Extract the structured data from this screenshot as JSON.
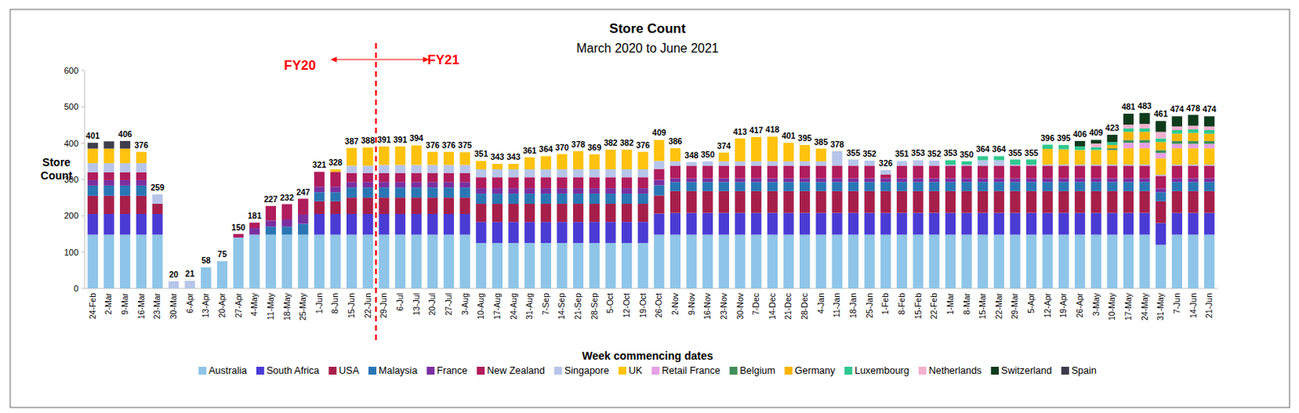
{
  "chart_data": {
    "type": "bar",
    "stacked": true,
    "grid": false,
    "legend": "bottom",
    "title": "Store Count",
    "subtitle": "March 2020 to June 2021",
    "y_label": "Store Count",
    "x_label": "Week commencing dates",
    "ylim": [
      0,
      600
    ],
    "yticks": [
      0,
      100,
      200,
      300,
      400,
      500,
      600
    ],
    "annotations": [
      {
        "text": "FY20",
        "x": "22-Jun",
        "color": "#ff0000"
      },
      {
        "text": "FY21",
        "x": "29-Jun",
        "color": "#ff0000"
      }
    ],
    "categories": [
      "24-Feb",
      "2-Mar",
      "9-Mar",
      "16-Mar",
      "23-Mar",
      "30-Mar",
      "6-Apr",
      "13-Apr",
      "20-Apr",
      "27-Apr",
      "4-May",
      "11-May",
      "18-May",
      "25-May",
      "1-Jun",
      "8-Jun",
      "15-Jun",
      "22-Jun",
      "29-Jun",
      "6-Jul",
      "13-Jul",
      "20-Jul",
      "27-Jul",
      "3-Aug",
      "10-Aug",
      "17-Aug",
      "24-Aug",
      "31-Aug",
      "7-Sep",
      "14-Sep",
      "21-Sep",
      "28-Sep",
      "5-Oct",
      "12-Oct",
      "19-Oct",
      "26-Oct",
      "2-Nov",
      "9-Nov",
      "16-Nov",
      "23-Nov",
      "30-Nov",
      "7-Dec",
      "14-Dec",
      "21-Dec",
      "28-Dec",
      "4-Jan",
      "11-Jan",
      "18-Jan",
      "25-Jan",
      "1-Feb",
      "8-Feb",
      "15-Feb",
      "22-Feb",
      "1-Mar",
      "8-Mar",
      "15-Mar",
      "22-Mar",
      "29-Mar",
      "5-Apr",
      "12-Apr",
      "19-Apr",
      "26-Apr",
      "3-May",
      "10-May",
      "17-May",
      "24-May",
      "31-May",
      "7-Jun",
      "14-Jun",
      "21-Jun"
    ],
    "totals": [
      401,
      null,
      406,
      376,
      259,
      20,
      21,
      58,
      75,
      150,
      181,
      227,
      232,
      247,
      321,
      328,
      387,
      388,
      391,
      391,
      394,
      376,
      376,
      375,
      351,
      343,
      343,
      361,
      364,
      370,
      378,
      369,
      382,
      382,
      376,
      409,
      386,
      348,
      350,
      374,
      413,
      417,
      418,
      401,
      395,
      385,
      378,
      355,
      352,
      326,
      351,
      353,
      352,
      353,
      350,
      364,
      364,
      355,
      355,
      396,
      395,
      406,
      409,
      423,
      481,
      483,
      461,
      474,
      478,
      474
    ],
    "series": [
      {
        "name": "Australia",
        "color": "#8ec5e8",
        "values": [
          148,
          148,
          148,
          148,
          148,
          null,
          null,
          58,
          75,
          140,
          148,
          148,
          148,
          148,
          148,
          148,
          148,
          148,
          148,
          148,
          148,
          148,
          148,
          148,
          125,
          125,
          125,
          125,
          125,
          125,
          125,
          125,
          125,
          125,
          125,
          148,
          148,
          148,
          148,
          148,
          148,
          148,
          148,
          148,
          148,
          148,
          148,
          148,
          148,
          148,
          148,
          148,
          148,
          148,
          148,
          148,
          148,
          148,
          148,
          148,
          148,
          148,
          148,
          148,
          148,
          148,
          120,
          148,
          148,
          148
        ]
      },
      {
        "name": "South Africa",
        "color": "#4a3bd4",
        "values": [
          57,
          57,
          57,
          57,
          57,
          null,
          null,
          null,
          null,
          null,
          null,
          null,
          null,
          null,
          57,
          57,
          57,
          57,
          57,
          57,
          57,
          57,
          57,
          57,
          58,
          58,
          58,
          58,
          58,
          58,
          58,
          58,
          58,
          58,
          58,
          58,
          60,
          60,
          60,
          60,
          60,
          60,
          60,
          60,
          60,
          60,
          60,
          60,
          60,
          60,
          60,
          60,
          60,
          60,
          60,
          60,
          60,
          60,
          60,
          60,
          60,
          60,
          60,
          60,
          60,
          60,
          60,
          60,
          60,
          60
        ]
      },
      {
        "name": "USA",
        "color": "#a61f4a",
        "values": [
          50,
          50,
          50,
          50,
          28,
          null,
          null,
          null,
          null,
          null,
          null,
          null,
          null,
          null,
          35,
          35,
          45,
          45,
          45,
          45,
          45,
          45,
          45,
          45,
          50,
          50,
          50,
          50,
          50,
          50,
          50,
          50,
          50,
          50,
          50,
          50,
          60,
          60,
          60,
          60,
          60,
          60,
          60,
          60,
          60,
          60,
          60,
          60,
          60,
          60,
          60,
          60,
          60,
          60,
          60,
          60,
          60,
          60,
          60,
          60,
          60,
          60,
          60,
          60,
          60,
          60,
          60,
          60,
          60,
          60
        ]
      },
      {
        "name": "Malaysia",
        "color": "#2a76b5",
        "values": [
          28,
          28,
          28,
          28,
          null,
          null,
          null,
          null,
          null,
          null,
          null,
          22,
          22,
          30,
          25,
          25,
          28,
          28,
          28,
          28,
          28,
          28,
          28,
          28,
          28,
          28,
          28,
          28,
          28,
          28,
          28,
          28,
          28,
          28,
          28,
          28,
          25,
          25,
          25,
          25,
          25,
          25,
          25,
          25,
          25,
          25,
          25,
          25,
          25,
          25,
          25,
          25,
          25,
          25,
          25,
          25,
          25,
          25,
          25,
          25,
          25,
          25,
          25,
          25,
          25,
          25,
          25,
          25,
          25,
          25
        ]
      },
      {
        "name": "France",
        "color": "#7a2fa0",
        "values": [
          15,
          15,
          15,
          15,
          null,
          null,
          null,
          null,
          null,
          null,
          18,
          17,
          20,
          25,
          15,
          15,
          15,
          15,
          15,
          15,
          15,
          15,
          15,
          15,
          15,
          15,
          15,
          15,
          15,
          15,
          15,
          15,
          15,
          15,
          15,
          15,
          10,
          10,
          10,
          10,
          10,
          10,
          10,
          10,
          10,
          10,
          10,
          10,
          10,
          10,
          10,
          10,
          10,
          10,
          10,
          10,
          10,
          10,
          10,
          10,
          10,
          10,
          10,
          10,
          10,
          10,
          10,
          10,
          10,
          10
        ]
      },
      {
        "name": "New Zealand",
        "color": "#b01c5c",
        "values": [
          22,
          22,
          22,
          22,
          null,
          null,
          null,
          null,
          null,
          10,
          15,
          40,
          42,
          44,
          41,
          41,
          25,
          25,
          25,
          25,
          25,
          25,
          25,
          25,
          30,
          30,
          30,
          30,
          30,
          30,
          30,
          30,
          30,
          30,
          30,
          30,
          35,
          35,
          35,
          35,
          35,
          35,
          35,
          35,
          35,
          35,
          35,
          35,
          35,
          11,
          35,
          35,
          35,
          35,
          35,
          35,
          35,
          35,
          35,
          35,
          35,
          35,
          35,
          35,
          35,
          35,
          35,
          35,
          35,
          35
        ]
      },
      {
        "name": "Singapore",
        "color": "#b7c5ea",
        "values": [
          25,
          25,
          25,
          25,
          26,
          20,
          21,
          null,
          null,
          null,
          null,
          null,
          null,
          null,
          null,
          null,
          20,
          20,
          22,
          22,
          22,
          22,
          22,
          22,
          22,
          22,
          22,
          22,
          22,
          22,
          22,
          22,
          22,
          22,
          22,
          22,
          12,
          10,
          12,
          12,
          12,
          12,
          12,
          12,
          12,
          12,
          40,
          17,
          14,
          12,
          13,
          15,
          14,
          3,
          3,
          15,
          15,
          3,
          3,
          3,
          3,
          3,
          3,
          3,
          3,
          3,
          3,
          3,
          3,
          3
        ]
      },
      {
        "name": "UK",
        "color": "#ffc20e",
        "values": [
          40,
          40,
          40,
          31,
          null,
          null,
          null,
          null,
          null,
          null,
          null,
          null,
          null,
          null,
          null,
          7,
          49,
          50,
          51,
          51,
          54,
          36,
          36,
          35,
          23,
          15,
          15,
          33,
          36,
          42,
          50,
          41,
          54,
          54,
          48,
          58,
          36,
          null,
          null,
          24,
          63,
          67,
          68,
          51,
          45,
          35,
          null,
          null,
          null,
          null,
          null,
          null,
          null,
          null,
          null,
          null,
          null,
          null,
          null,
          43,
          42,
          40,
          40,
          40,
          45,
          45,
          45,
          45,
          45,
          45
        ]
      },
      {
        "name": "Retail France",
        "color": "#e6a0e6",
        "values": [
          null,
          null,
          null,
          null,
          null,
          null,
          null,
          null,
          null,
          null,
          null,
          null,
          null,
          null,
          null,
          null,
          null,
          null,
          null,
          null,
          null,
          null,
          null,
          null,
          null,
          null,
          null,
          null,
          null,
          null,
          null,
          null,
          null,
          null,
          null,
          null,
          null,
          null,
          null,
          null,
          null,
          null,
          null,
          null,
          null,
          null,
          null,
          null,
          null,
          null,
          null,
          null,
          null,
          null,
          null,
          null,
          null,
          null,
          null,
          null,
          null,
          null,
          null,
          null,
          15,
          15,
          15,
          12,
          12,
          12
        ]
      },
      {
        "name": "Belgium",
        "color": "#3f8f5a",
        "values": [
          null,
          null,
          null,
          null,
          null,
          null,
          null,
          null,
          null,
          null,
          null,
          null,
          null,
          null,
          null,
          null,
          null,
          null,
          null,
          null,
          null,
          null,
          null,
          null,
          null,
          null,
          null,
          null,
          null,
          null,
          null,
          null,
          null,
          null,
          null,
          null,
          null,
          null,
          null,
          null,
          null,
          null,
          null,
          null,
          null,
          null,
          null,
          null,
          null,
          null,
          null,
          null,
          null,
          null,
          null,
          null,
          null,
          null,
          null,
          null,
          null,
          null,
          null,
          5,
          8,
          8,
          8,
          8,
          8,
          8
        ]
      },
      {
        "name": "Germany",
        "color": "#f7b500",
        "values": [
          null,
          null,
          null,
          null,
          null,
          null,
          null,
          null,
          null,
          null,
          null,
          null,
          null,
          null,
          null,
          null,
          null,
          null,
          null,
          null,
          null,
          null,
          null,
          null,
          null,
          null,
          null,
          null,
          null,
          null,
          null,
          null,
          null,
          null,
          null,
          null,
          null,
          null,
          null,
          null,
          null,
          null,
          null,
          null,
          null,
          null,
          null,
          null,
          null,
          null,
          null,
          null,
          null,
          null,
          null,
          null,
          null,
          null,
          null,
          null,
          null,
          null,
          null,
          9,
          22,
          22,
          22,
          20,
          22,
          20
        ]
      },
      {
        "name": "Luxembourg",
        "color": "#2fc88f",
        "values": [
          null,
          null,
          null,
          null,
          null,
          null,
          null,
          null,
          null,
          null,
          null,
          null,
          null,
          null,
          null,
          null,
          null,
          null,
          null,
          null,
          null,
          null,
          null,
          null,
          null,
          null,
          null,
          null,
          null,
          null,
          null,
          null,
          null,
          null,
          null,
          null,
          null,
          null,
          null,
          null,
          null,
          null,
          null,
          null,
          null,
          null,
          null,
          null,
          null,
          null,
          null,
          null,
          null,
          12,
          9,
          11,
          11,
          14,
          14,
          12,
          12,
          10,
          8,
          8,
          10,
          10,
          10,
          10,
          10,
          10
        ]
      },
      {
        "name": "Netherlands",
        "color": "#f2b1cf",
        "values": [
          null,
          null,
          null,
          null,
          null,
          null,
          null,
          null,
          null,
          null,
          null,
          null,
          null,
          null,
          null,
          null,
          null,
          null,
          null,
          null,
          null,
          null,
          null,
          null,
          null,
          null,
          null,
          null,
          null,
          null,
          null,
          null,
          null,
          null,
          null,
          null,
          null,
          null,
          null,
          null,
          null,
          null,
          null,
          null,
          null,
          null,
          null,
          null,
          null,
          null,
          null,
          null,
          null,
          null,
          null,
          null,
          null,
          null,
          null,
          null,
          null,
          null,
          10,
          null,
          10,
          12,
          18,
          10,
          10,
          10
        ]
      },
      {
        "name": "Switzerland",
        "color": "#0d3b1c",
        "values": [
          null,
          null,
          null,
          null,
          null,
          null,
          null,
          null,
          null,
          null,
          null,
          null,
          null,
          null,
          null,
          null,
          null,
          null,
          null,
          null,
          null,
          null,
          null,
          null,
          null,
          null,
          null,
          null,
          null,
          null,
          null,
          null,
          null,
          null,
          null,
          null,
          null,
          null,
          null,
          null,
          null,
          null,
          null,
          null,
          null,
          null,
          null,
          null,
          null,
          null,
          null,
          null,
          null,
          null,
          null,
          null,
          null,
          null,
          null,
          null,
          null,
          15,
          10,
          20,
          30,
          30,
          30,
          28,
          30,
          28
        ]
      },
      {
        "name": "Spain",
        "color": "#3d3d4d",
        "values": [
          16,
          20,
          21,
          null,
          null,
          null,
          null,
          null,
          null,
          null,
          null,
          null,
          null,
          null,
          null,
          null,
          null,
          null,
          null,
          null,
          null,
          null,
          null,
          null,
          null,
          null,
          null,
          null,
          null,
          null,
          null,
          null,
          null,
          null,
          null,
          null,
          null,
          null,
          null,
          null,
          null,
          null,
          null,
          null,
          null,
          null,
          null,
          null,
          null,
          null,
          null,
          null,
          null,
          null,
          null,
          null,
          null,
          null,
          null,
          null,
          null,
          null,
          null,
          null,
          null,
          null,
          null,
          null,
          null,
          null
        ]
      }
    ]
  }
}
